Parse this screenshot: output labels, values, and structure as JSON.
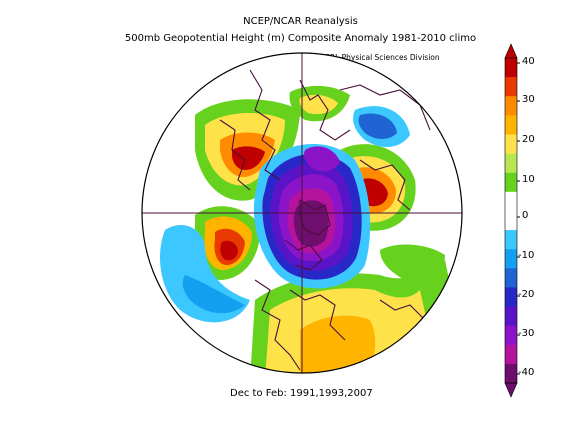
{
  "title_line1": "NCEP/NCAR Reanalysis",
  "title_line2": "500mb Geopotential Height (m) Composite Anomaly 1981-2010 climo",
  "credit": "NOAA/ESRL Physical Sciences Division",
  "footer": "Dec to Feb: 1991,1993,2007",
  "colorbar": {
    "labels": [
      "40",
      "30",
      "20",
      "10",
      "0",
      "-10",
      "-20",
      "-30",
      "-40"
    ],
    "colors": [
      "#c00000",
      "#e83a00",
      "#ff8c00",
      "#ffb400",
      "#ffe14a",
      "#b8e650",
      "#66d21e",
      "#ffffff",
      "#ffffff",
      "#3cc8ff",
      "#14a0f0",
      "#1f64d2",
      "#2828c8",
      "#5a14c8",
      "#8c14c8",
      "#b4139e",
      "#6e0f6e"
    ]
  }
}
